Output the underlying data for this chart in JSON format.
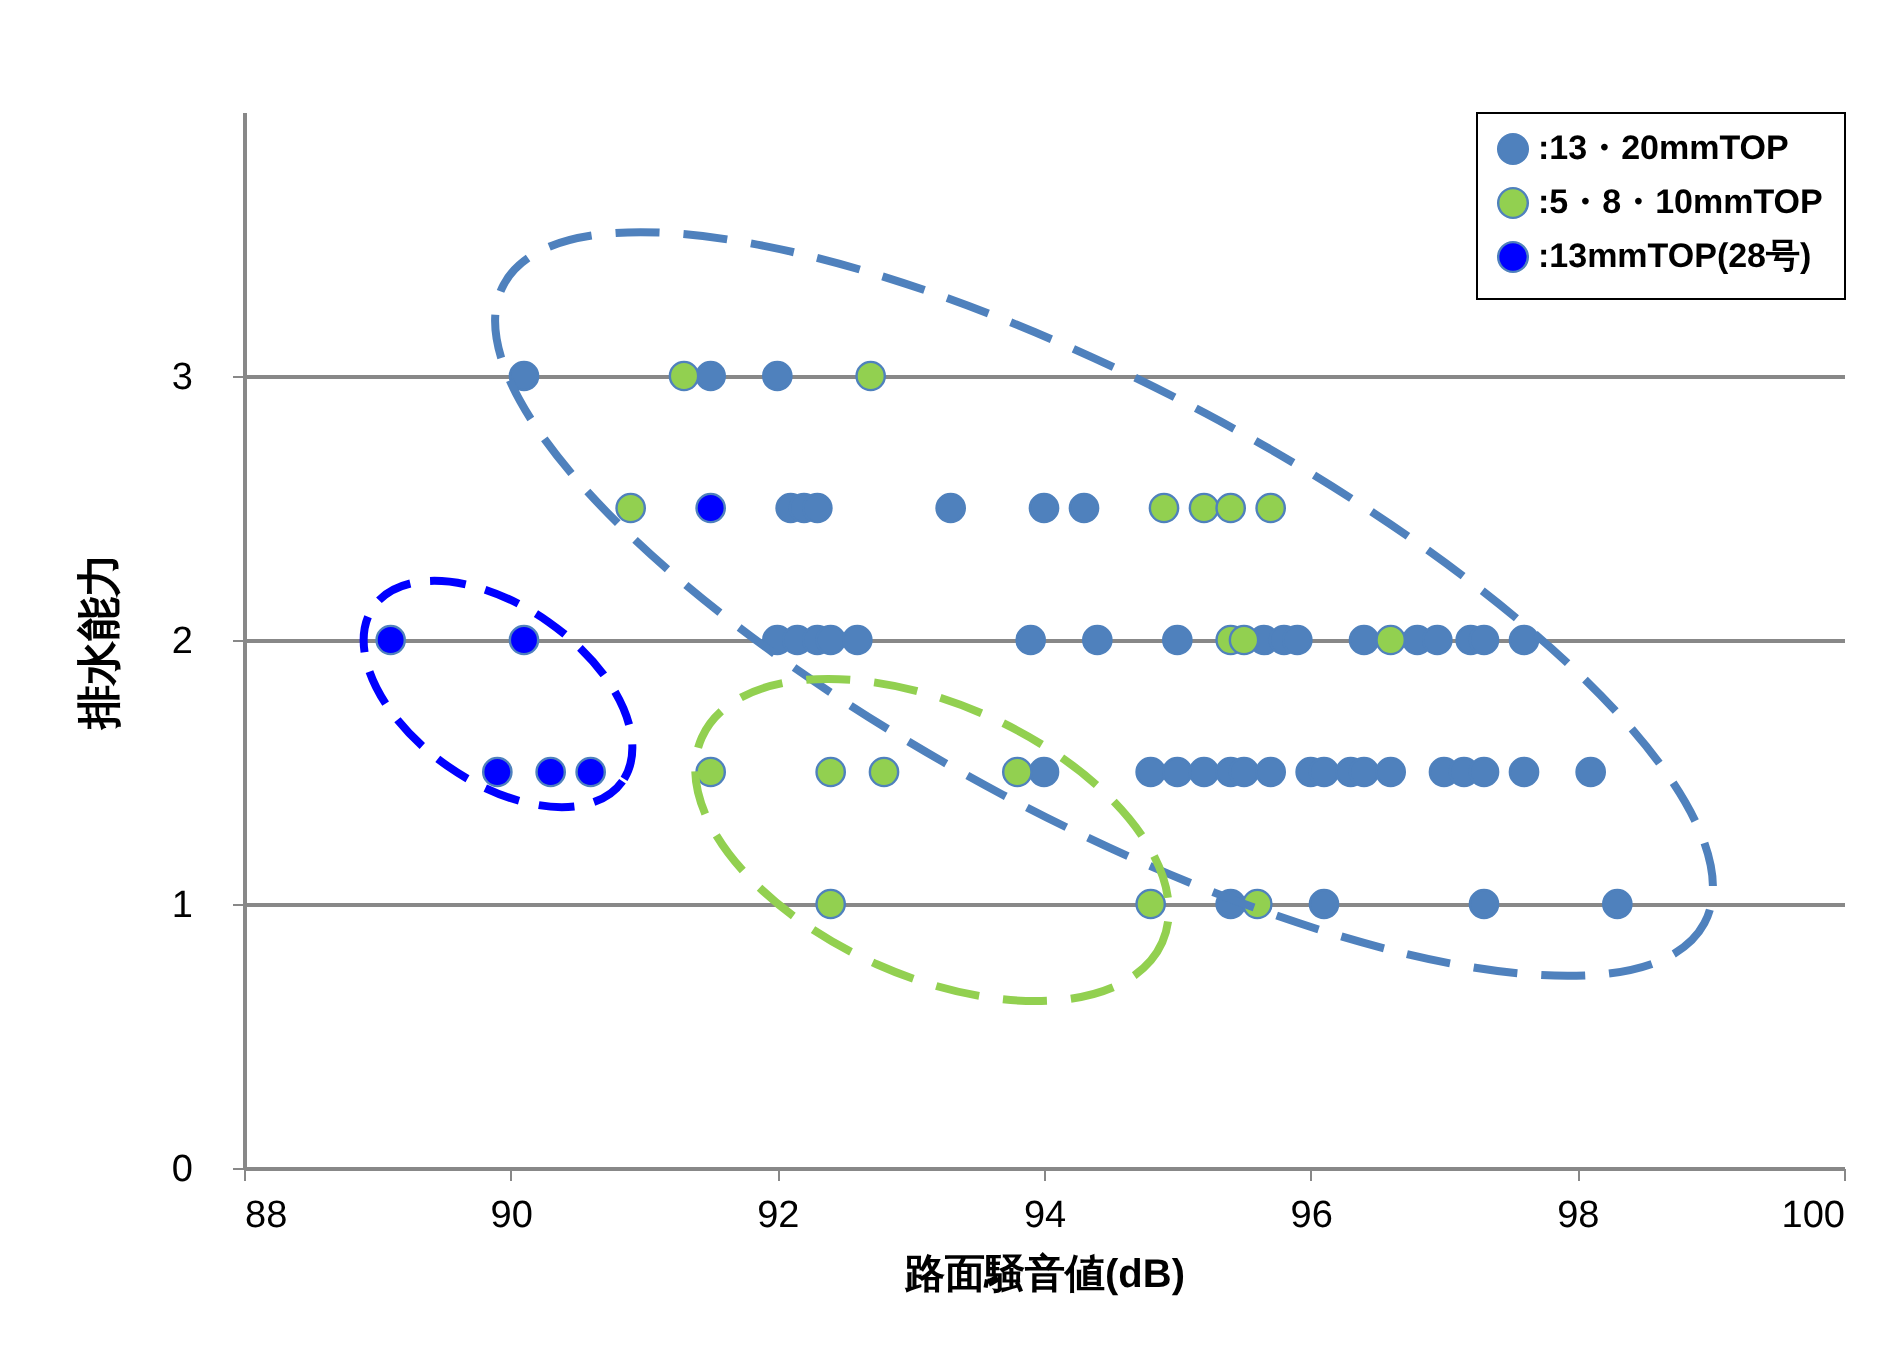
{
  "chart_data": {
    "type": "scatter",
    "xlabel": "路面騒音値(dB)",
    "ylabel": "排水能力",
    "xlim": [
      88,
      100
    ],
    "ylim": [
      0,
      4
    ],
    "xticks": [
      88,
      90,
      92,
      94,
      96,
      98,
      100
    ],
    "yticks": [
      0,
      1,
      2,
      3
    ],
    "grid": "y",
    "legend": "top right",
    "marker": "circle",
    "series": [
      {
        "name": ":13・20mmTOP",
        "color": "#4f81bd",
        "x": [
          90.1,
          91.5,
          92.0,
          92.1,
          92.2,
          92.3,
          93.3,
          94.0,
          94.3,
          92.0,
          92.15,
          92.3,
          92.4,
          92.6,
          93.9,
          94.4,
          95.0,
          95.65,
          95.8,
          95.9,
          96.4,
          96.8,
          96.95,
          97.2,
          97.3,
          97.6,
          94.0,
          94.8,
          95.0,
          95.2,
          95.4,
          95.5,
          95.7,
          96.0,
          96.1,
          96.3,
          96.4,
          96.6,
          97.0,
          97.15,
          97.3,
          97.6,
          98.1,
          95.4,
          96.1,
          97.3,
          98.3
        ],
        "values": [
          3,
          3,
          3,
          2.5,
          2.5,
          2.5,
          2.5,
          2.5,
          2.5,
          2,
          2,
          2,
          2,
          2,
          2,
          2,
          2,
          2,
          2,
          2,
          2,
          2,
          2,
          2,
          2,
          2,
          1.5,
          1.5,
          1.5,
          1.5,
          1.5,
          1.5,
          1.5,
          1.5,
          1.5,
          1.5,
          1.5,
          1.5,
          1.5,
          1.5,
          1.5,
          1.5,
          1.5,
          1,
          1,
          1,
          1
        ]
      },
      {
        "name": ":5・8・10mmTOP",
        "color": "#92d050",
        "x": [
          91.3,
          92.7,
          90.9,
          94.9,
          95.2,
          95.4,
          95.7,
          95.4,
          95.5,
          96.6,
          91.5,
          92.4,
          92.8,
          93.8,
          92.4,
          94.8,
          95.6
        ],
        "values": [
          3,
          3,
          2.5,
          2.5,
          2.5,
          2.5,
          2.5,
          2,
          2,
          2,
          1.5,
          1.5,
          1.5,
          1.5,
          1,
          1,
          1
        ]
      },
      {
        "name": ":13mmTOP(28号)",
        "color": "#0000ff",
        "x": [
          91.5,
          89.1,
          90.1,
          89.9,
          90.3,
          90.6
        ],
        "values": [
          2.5,
          2,
          2,
          1.5,
          1.5,
          1.5
        ]
      }
    ]
  }
}
